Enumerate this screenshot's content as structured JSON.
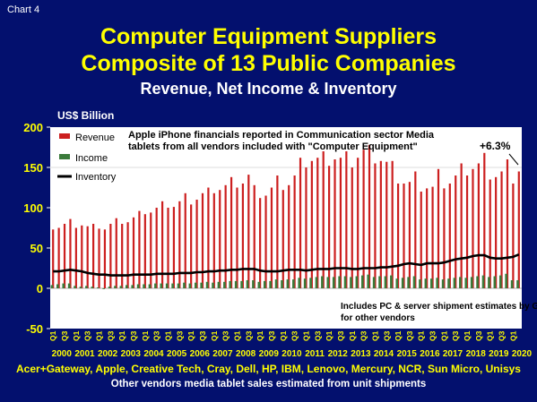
{
  "header": {
    "chart_tag": "Chart 4",
    "title_line1": "Computer Equipment Suppliers",
    "title_line2": "Composite of 13 Public Companies",
    "subtitle": "Revenue, Net Income & Inventory",
    "unit_label": "US$ Billion"
  },
  "footer": {
    "line1": "Acer+Gateway, Apple, Creative Tech, Cray, Dell, HP, IBM, Lenovo, Mercury, NCR, Sun Micro, Unisys",
    "line2": "Other vendors media tablet sales estimated from unit shipments"
  },
  "colors": {
    "background": "#03106e",
    "title": "#ffff00",
    "revenue": "#cc1f1f",
    "income": "#3a7a3a",
    "inventory": "#000000",
    "axis_text": "#ffff00"
  },
  "chart_data": {
    "type": "bar",
    "title": "",
    "ylabel": "",
    "ylim": [
      -50,
      200
    ],
    "yticks": [
      -50,
      0,
      50,
      100,
      150,
      200
    ],
    "legend_position": "top-left",
    "grid": false,
    "legend": [
      "Revenue",
      "Income",
      "Inventory"
    ],
    "annotations": {
      "note_top": [
        "Apple iPhone financials reported in Communication sector Media",
        "tablets from all vendors included with \"Computer Equipment\""
      ],
      "growth": "+6.3%",
      "note_bottom": [
        "Includes PC & server shipment estimates by G",
        "for other vendors"
      ]
    },
    "years": [
      "2000",
      "2001",
      "2002",
      "2003",
      "2004",
      "2005",
      "2006",
      "2007",
      "2008",
      "2009",
      "2010",
      "2011",
      "2012",
      "2013",
      "2014",
      "2015",
      "2016",
      "2017",
      "2018",
      "2019",
      "2020"
    ],
    "quarter_labels": [
      "Q1",
      "Q3"
    ],
    "series": [
      {
        "name": "Revenue",
        "kind": "bar",
        "values": [
          73,
          75,
          80,
          86,
          75,
          78,
          77,
          80,
          74,
          73,
          80,
          87,
          80,
          82,
          88,
          96,
          92,
          94,
          100,
          108,
          100,
          101,
          108,
          118,
          104,
          110,
          118,
          125,
          118,
          122,
          128,
          138,
          125,
          130,
          141,
          128,
          112,
          115,
          125,
          140,
          122,
          128,
          140,
          162,
          150,
          158,
          162,
          170,
          152,
          160,
          162,
          170,
          150,
          162,
          172,
          178,
          155,
          158,
          157,
          158,
          130,
          130,
          132,
          145,
          120,
          124,
          126,
          148,
          124,
          130,
          140,
          155,
          140,
          148,
          155,
          168,
          135,
          138,
          145,
          160,
          130,
          145
        ]
      },
      {
        "name": "Income",
        "kind": "bar",
        "values": [
          4,
          5,
          6,
          6,
          3,
          2,
          3,
          2,
          1,
          -1,
          2,
          3,
          3,
          4,
          4,
          5,
          5,
          5,
          6,
          6,
          6,
          6,
          6,
          7,
          6,
          7,
          7,
          8,
          7,
          8,
          8,
          9,
          9,
          9,
          10,
          10,
          8,
          9,
          9,
          11,
          10,
          11,
          11,
          13,
          12,
          13,
          14,
          15,
          14,
          14,
          15,
          15,
          14,
          15,
          16,
          17,
          14,
          15,
          15,
          16,
          12,
          13,
          14,
          15,
          11,
          12,
          12,
          13,
          11,
          12,
          13,
          14,
          13,
          14,
          15,
          16,
          14,
          15,
          16,
          18,
          10,
          10
        ]
      },
      {
        "name": "Inventory",
        "kind": "line",
        "values": [
          21,
          21,
          22,
          23,
          22,
          21,
          19,
          18,
          17,
          17,
          16,
          16,
          16,
          16,
          17,
          17,
          17,
          17,
          18,
          18,
          18,
          18,
          19,
          19,
          19,
          20,
          20,
          21,
          21,
          22,
          22,
          23,
          23,
          24,
          24,
          24,
          22,
          21,
          21,
          21,
          22,
          23,
          23,
          23,
          22,
          23,
          24,
          24,
          24,
          25,
          25,
          25,
          24,
          24,
          25,
          25,
          25,
          26,
          26,
          27,
          28,
          30,
          31,
          30,
          29,
          31,
          31,
          31,
          32,
          34,
          36,
          37,
          38,
          40,
          41,
          41,
          38,
          37,
          37,
          38,
          39,
          42
        ]
      }
    ]
  }
}
